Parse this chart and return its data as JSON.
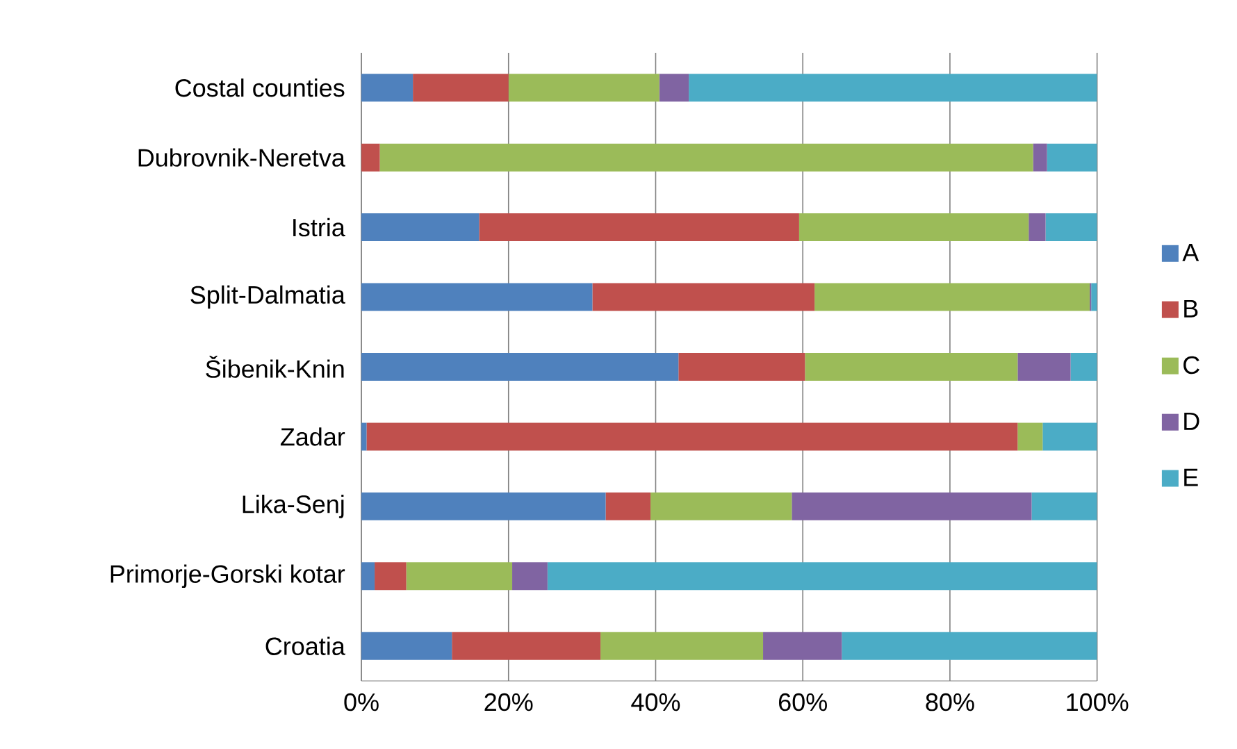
{
  "chart_data": {
    "type": "bar",
    "orientation": "horizontal",
    "stacked": true,
    "categories": [
      "Costal counties",
      "Dubrovnik-Neretva",
      "Istria",
      "Split-Dalmatia",
      "Šibenik-Knin",
      "Zadar",
      "Lika-Senj",
      "Primorje-Gorski kotar",
      "Croatia"
    ],
    "series": [
      {
        "name": "A",
        "color": "#4f81bd",
        "values": [
          7,
          0,
          16,
          31.4,
          43.1,
          0.7,
          33.2,
          1.8,
          12.3
        ]
      },
      {
        "name": "B",
        "color": "#c0504d",
        "values": [
          13,
          2.5,
          43.5,
          30.2,
          17.2,
          88.5,
          6.1,
          4.3,
          20.2
        ]
      },
      {
        "name": "C",
        "color": "#9bbb59",
        "values": [
          20.5,
          88.8,
          31.2,
          37.4,
          28.9,
          3.4,
          19.2,
          14.4,
          22.1
        ]
      },
      {
        "name": "D",
        "color": "#8064a2",
        "values": [
          4,
          1.9,
          2.3,
          0.2,
          7.2,
          0,
          32.6,
          4.8,
          10.7
        ]
      },
      {
        "name": "E",
        "color": "#4bacc6",
        "values": [
          55.5,
          6.8,
          7,
          0.8,
          3.6,
          7.4,
          8.9,
          74.7,
          34.7
        ]
      }
    ],
    "xlim": [
      0,
      100
    ],
    "xticks": [
      {
        "value": 0,
        "label": "0%"
      },
      {
        "value": 20,
        "label": "20%"
      },
      {
        "value": 40,
        "label": "40%"
      },
      {
        "value": 60,
        "label": "60%"
      },
      {
        "value": 80,
        "label": "80%"
      },
      {
        "value": 100,
        "label": "100%"
      }
    ],
    "grid": "x",
    "legend": "right"
  }
}
